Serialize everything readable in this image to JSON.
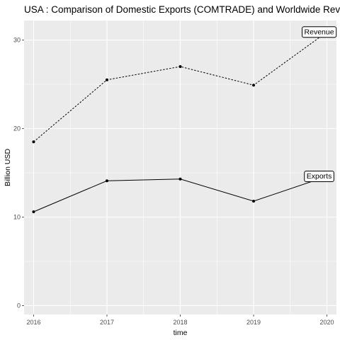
{
  "chart_data": {
    "type": "line",
    "title": "USA : Comparison of Domestic Exports (COMTRADE) and Worldwide Revenue",
    "xlabel": "time",
    "ylabel": "Billion USD",
    "x": [
      2016,
      2017,
      2018,
      2019,
      2020
    ],
    "xlim": [
      2015.87,
      2020.13
    ],
    "ylim": [
      -1.0,
      32.2
    ],
    "y_ticks": [
      0,
      10,
      20,
      30
    ],
    "grid": true,
    "legend": "none",
    "series": [
      {
        "name": "Revenue",
        "line_style": "dotted",
        "values": [
          18.5,
          25.5,
          27.0,
          24.9,
          30.9
        ]
      },
      {
        "name": "Exports",
        "line_style": "solid",
        "values": [
          10.6,
          14.1,
          14.3,
          11.8,
          14.6
        ]
      }
    ],
    "colors": {
      "panel": "#ebebeb",
      "grid": "#ffffff",
      "line": "#000000",
      "tick_text": "#4d4d4d"
    }
  }
}
